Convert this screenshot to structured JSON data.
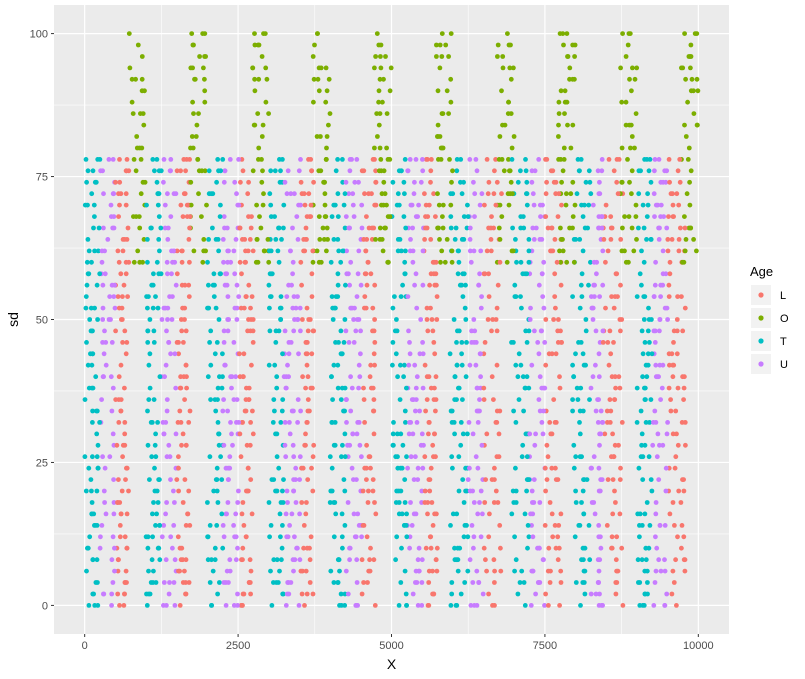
{
  "chart_data": {
    "type": "scatter",
    "xlabel": "X",
    "ylabel": "sd",
    "xlim": [
      -500,
      10500
    ],
    "ylim": [
      -5,
      105
    ],
    "x_ticks": [
      0,
      2500,
      5000,
      7500,
      10000
    ],
    "x_tick_labels": [
      "0",
      "2500",
      "5000",
      "7500",
      "10000"
    ],
    "y_ticks": [
      0,
      25,
      50,
      75,
      100
    ],
    "y_tick_labels": [
      "0",
      "25",
      "50",
      "75",
      "100"
    ],
    "grid": true,
    "legend": {
      "title": "Age",
      "placement": "right",
      "entries": [
        {
          "label": "L",
          "color": "#F8766D"
        },
        {
          "label": "O",
          "color": "#7CAE00"
        },
        {
          "label": "T",
          "color": "#00BFC4"
        },
        {
          "label": "U",
          "color": "#C77CFF"
        }
      ]
    },
    "series": [
      {
        "name": "L",
        "color": "#F8766D",
        "y_range": [
          0,
          79
        ],
        "x_bands": [
          [
            500,
            720
          ],
          [
            1500,
            1720
          ],
          [
            2520,
            2750
          ],
          [
            3520,
            3740
          ],
          [
            4520,
            4750
          ],
          [
            5530,
            5750
          ],
          [
            6500,
            6800
          ],
          [
            7500,
            7780
          ],
          [
            8450,
            8780
          ],
          [
            9500,
            9800
          ]
        ]
      },
      {
        "name": "O",
        "color": "#7CAE00",
        "y_range": [
          60,
          100
        ],
        "x_bands": [
          [
            720,
            1000
          ],
          [
            1720,
            2000
          ],
          [
            2720,
            3000
          ],
          [
            3720,
            4000
          ],
          [
            4720,
            5000
          ],
          [
            5720,
            6000
          ],
          [
            6720,
            7000
          ],
          [
            7720,
            8000
          ],
          [
            8720,
            9000
          ],
          [
            9720,
            10000
          ]
        ]
      },
      {
        "name": "T",
        "color": "#00BFC4",
        "y_range": [
          0,
          79
        ],
        "x_bands": [
          [
            0,
            250
          ],
          [
            1000,
            1250
          ],
          [
            2000,
            2250
          ],
          [
            3000,
            3250
          ],
          [
            4000,
            4250
          ],
          [
            5000,
            5250
          ],
          [
            5950,
            6250
          ],
          [
            6950,
            7250
          ],
          [
            7950,
            8250
          ],
          [
            9000,
            9250
          ]
        ]
      },
      {
        "name": "U",
        "color": "#C77CFF",
        "y_range": [
          0,
          79
        ],
        "x_bands": [
          [
            250,
            500
          ],
          [
            1250,
            1500
          ],
          [
            2250,
            2520
          ],
          [
            3250,
            3520
          ],
          [
            4250,
            4520
          ],
          [
            5250,
            5530
          ],
          [
            6250,
            6500
          ],
          [
            7250,
            7500
          ],
          [
            8250,
            8450
          ],
          [
            9250,
            9500
          ]
        ]
      }
    ]
  }
}
